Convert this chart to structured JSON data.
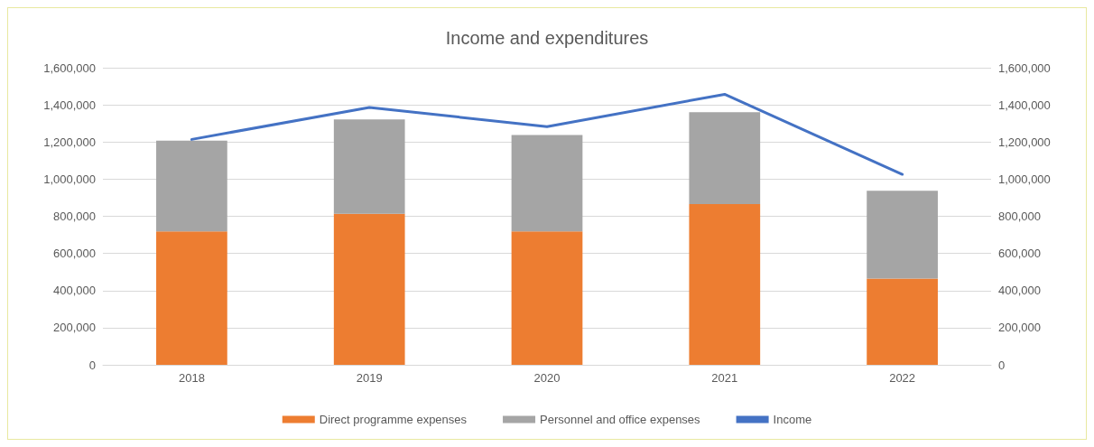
{
  "chart_data": {
    "type": "bar",
    "title": "Income and expenditures",
    "categories": [
      "2018",
      "2019",
      "2020",
      "2021",
      "2022"
    ],
    "stacked": true,
    "series": [
      {
        "name": "Direct programme expenses",
        "color": "#ed7d31",
        "values": [
          719000,
          813000,
          718000,
          866000,
          465000
        ]
      },
      {
        "name": "Personnel and office expenses",
        "color": "#a5a5a5",
        "values": [
          488000,
          509000,
          520000,
          494000,
          472000
        ]
      },
      {
        "name": "Income",
        "type": "line",
        "color": "#4472c4",
        "values": [
          1214000,
          1386000,
          1283000,
          1457000,
          1026000
        ]
      }
    ],
    "ylim": [
      0,
      1600000
    ],
    "yticks": [
      {
        "value": 0,
        "label": "0"
      },
      {
        "value": 200000,
        "label": "200,000"
      },
      {
        "value": 400000,
        "label": "400,000"
      },
      {
        "value": 600000,
        "label": "600,000"
      },
      {
        "value": 800000,
        "label": "800,000"
      },
      {
        "value": 1000000,
        "label": "1,000,000"
      },
      {
        "value": 1200000,
        "label": "1,200,000"
      },
      {
        "value": 1400000,
        "label": "1,400,000"
      },
      {
        "value": 1600000,
        "label": "1,600,000"
      }
    ],
    "y2lim": [
      0,
      1600000
    ],
    "y2ticks": [
      {
        "value": 0,
        "label": "0"
      },
      {
        "value": 200000,
        "label": "200,000"
      },
      {
        "value": 400000,
        "label": "400,000"
      },
      {
        "value": 600000,
        "label": "600,000"
      },
      {
        "value": 800000,
        "label": "800,000"
      },
      {
        "value": 1000000,
        "label": "1,000,000"
      },
      {
        "value": 1200000,
        "label": "1,200,000"
      },
      {
        "value": 1400000,
        "label": "1,400,000"
      },
      {
        "value": 1600000,
        "label": "1,600,000"
      }
    ],
    "grid": "y",
    "legend": "bottom",
    "marker": "none"
  }
}
